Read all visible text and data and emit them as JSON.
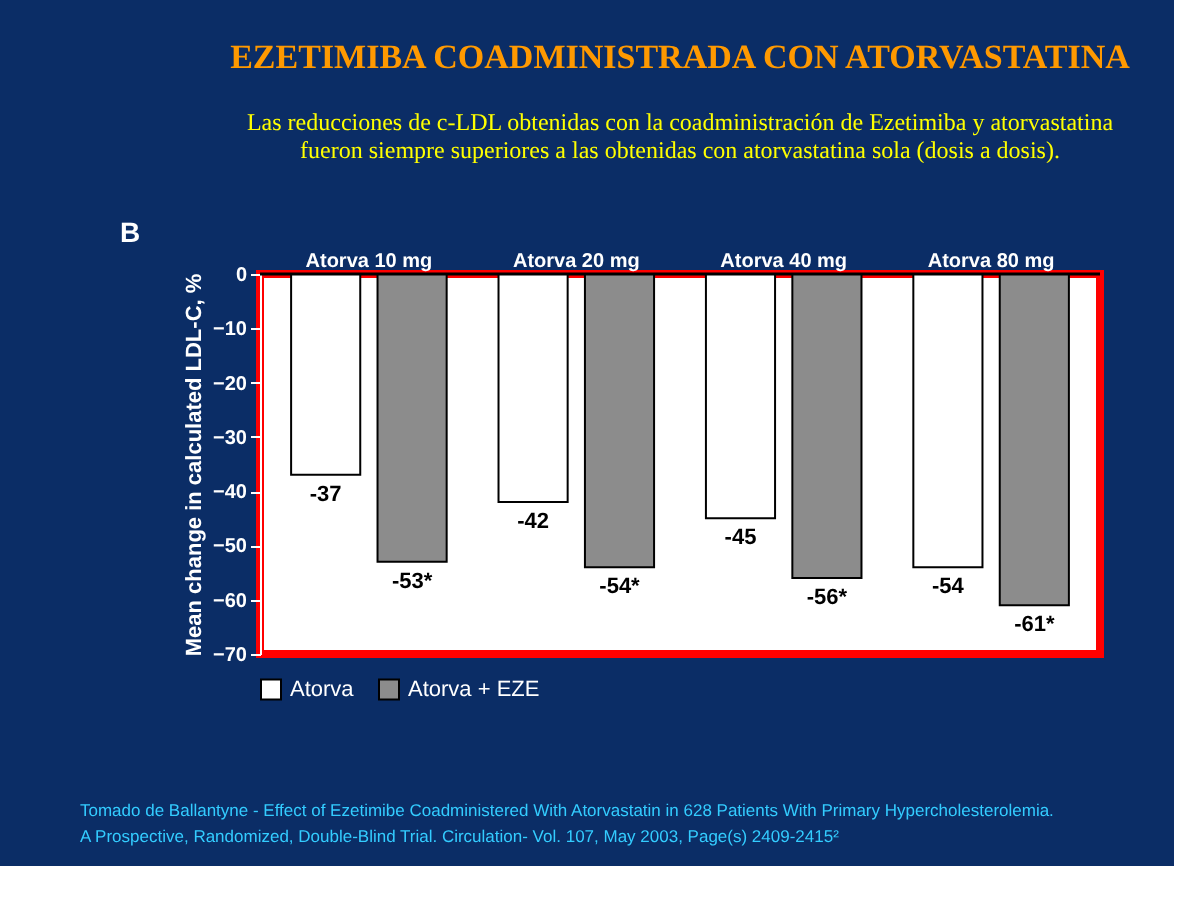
{
  "chart_data": {
    "type": "bar",
    "title": "EZETIMIBA COADMINISTRADA CON ATORVASTATINA",
    "subtitle": "Las reducciones de c-LDL obtenidas con la coadministración de Ezetimiba y atorvastatina fueron siempre superiores a las obtenidas con atorvastatina sola (dosis a dosis).",
    "categories": [
      "Atorva 10 mg",
      "Atorva 20 mg",
      "Atorva 40 mg",
      "Atorva 80 mg"
    ],
    "series": [
      {
        "name": "Atorva",
        "color": "#ffffff",
        "values": [
          -37,
          -42,
          -45,
          -54
        ],
        "value_labels": [
          "-37",
          "-42",
          "-45",
          "-54"
        ]
      },
      {
        "name": "Atorva + EZE",
        "color": "#8c8c8c",
        "values": [
          -53,
          -54,
          -56,
          -61
        ],
        "value_labels": [
          "-53*",
          "-54*",
          "-56*",
          "-61*"
        ]
      }
    ],
    "ylabel": "Mean change in calculated LDL-C, %",
    "ylim": [
      -70,
      0
    ],
    "yticks": [
      0,
      -10,
      -20,
      -30,
      -40,
      -50,
      -60,
      -70
    ],
    "grid": false,
    "legend": "bottom",
    "annotations": [
      "B",
      "Tomado de Ballantyne - Effect of Ezetimibe Coadministered With Atorvastatin in 628 Patients With Primary Hypercholesterolemia.",
      "A Prospective, Randomized, Double-Blind Trial.  Circulation- Vol. 107, May 2003, Page(s) 2409-2415²"
    ]
  }
}
